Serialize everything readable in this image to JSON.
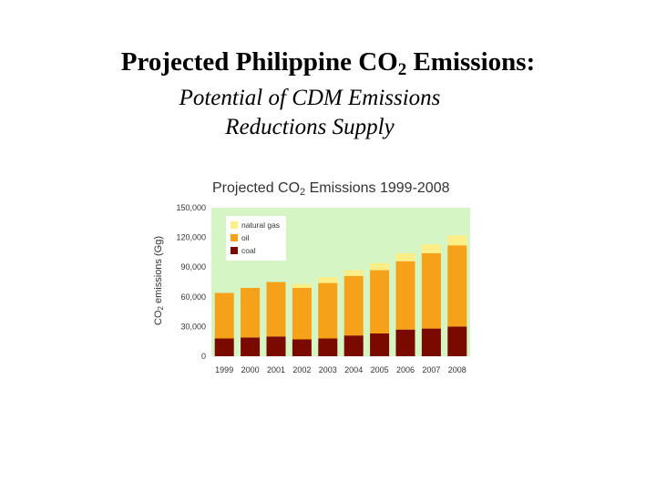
{
  "slide": {
    "title_main": "Projected Philippine CO",
    "title_sub": "2",
    "title_tail": " Emissions:",
    "subtitle_line1": "Potential of CDM Emissions",
    "subtitle_line2": "Reductions Supply"
  },
  "chart_data": {
    "type": "bar",
    "stacked": true,
    "title_prefix": "Projected CO",
    "title_sub": "2",
    "title_suffix": " Emissions 1999-2008",
    "ylabel_prefix": "CO",
    "ylabel_sub": "2",
    "ylabel_suffix": " emissions (Gg)",
    "xlabel": "",
    "ylim": [
      0,
      150000
    ],
    "yticks": [
      0,
      30000,
      60000,
      90000,
      120000,
      150000
    ],
    "ytick_labels": [
      "0",
      "30,000",
      "60,000",
      "90,000",
      "120,000",
      "150,000"
    ],
    "categories": [
      "1999",
      "2000",
      "2001",
      "2002",
      "2003",
      "2004",
      "2005",
      "2006",
      "2007",
      "2008"
    ],
    "series": [
      {
        "name": "coal",
        "color": "#7a0a00",
        "values": [
          18000,
          19000,
          20000,
          17000,
          18000,
          21000,
          23000,
          27000,
          28000,
          30000
        ]
      },
      {
        "name": "oil",
        "color": "#f5a11a",
        "values": [
          46000,
          50000,
          55000,
          52000,
          56000,
          60000,
          64000,
          69000,
          76000,
          82000
        ]
      },
      {
        "name": "natural gas",
        "color": "#ffee88",
        "values": [
          0,
          0,
          0,
          4000,
          6000,
          6000,
          7000,
          8000,
          9000,
          10000
        ]
      }
    ],
    "legend_labels": [
      "natural gas",
      "oil",
      "coal"
    ],
    "legend_position": "top-left",
    "plot_background": "#d6f5c4",
    "grid": false
  }
}
